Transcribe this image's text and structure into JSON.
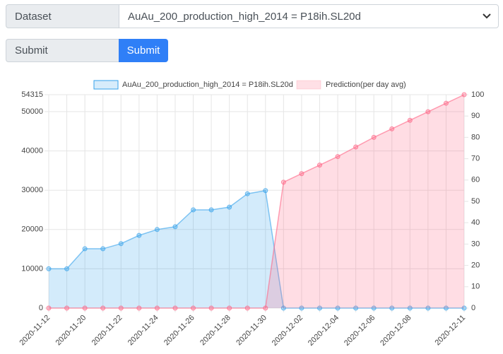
{
  "form": {
    "dataset_label": "Dataset",
    "dataset_value": "AuAu_200_production_high_2014 = P18ih.SL20d",
    "submit_label": "Submit",
    "submit_button": "Submit"
  },
  "chart_data": {
    "type": "line",
    "categories": [
      "2020-11-12",
      null,
      "2020-11-20",
      null,
      "2020-11-22",
      null,
      "2020-11-24",
      null,
      "2020-11-26",
      null,
      "2020-11-28",
      null,
      "2020-11-30",
      null,
      "2020-12-02",
      null,
      "2020-12-04",
      null,
      "2020-12-06",
      null,
      "2020-12-08",
      null,
      null,
      "2020-12-11"
    ],
    "series": [
      {
        "name": "AuAu_200_production_high_2014 = P18ih.SL20d",
        "color": "#36a2eb",
        "axis": "y",
        "values": [
          10000,
          10000,
          15100,
          15100,
          16400,
          18500,
          20000,
          20700,
          25000,
          25000,
          25700,
          29100,
          29900,
          0,
          0,
          0,
          0,
          0,
          0,
          0,
          0,
          0,
          0,
          0
        ]
      },
      {
        "name": "Prediction(per day avg)",
        "color": "#ff6384",
        "axis": "y2",
        "values": [
          0,
          0,
          0,
          0,
          0,
          0,
          0,
          0,
          0,
          0,
          0,
          0,
          0,
          59,
          63,
          67,
          71,
          75.5,
          80,
          84,
          88,
          92,
          96,
          100
        ]
      }
    ],
    "ylim": [
      0,
      54315
    ],
    "yticks": [
      0,
      10000,
      20000,
      30000,
      40000,
      50000,
      54315
    ],
    "y2lim": [
      0,
      100
    ],
    "y2ticks": [
      0,
      10,
      20,
      30,
      40,
      50,
      60,
      70,
      80,
      90,
      100
    ],
    "grid": true,
    "legend": "top"
  }
}
